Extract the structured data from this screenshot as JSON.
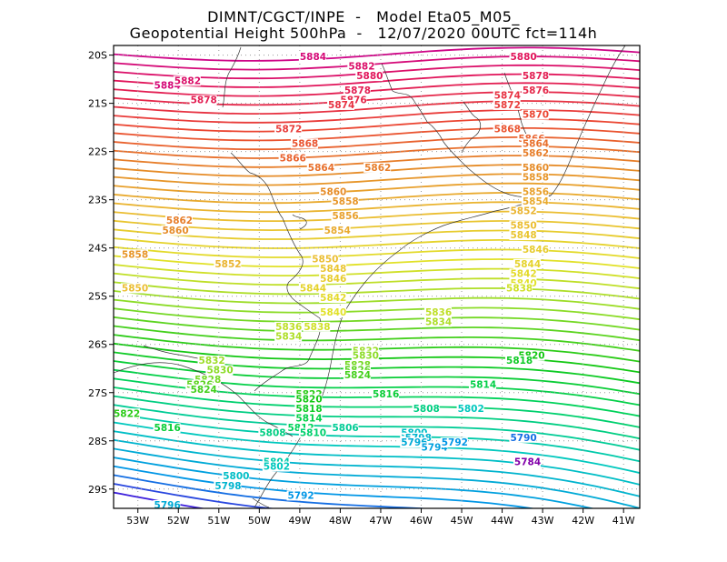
{
  "header": {
    "title_line1": "DIMNT/CGCT/INPE  -   Model Eta05_M05_",
    "title_line2": "Geopotential Height 500hPa  -   12/07/2020 00UTC fct=114h"
  },
  "chart_data": {
    "type": "contour",
    "variable": "Geopotential Height 500hPa",
    "lon_range": [
      -53.6,
      -40.6
    ],
    "lat_range": [
      -29.4,
      -19.8
    ],
    "contour_interval": 2,
    "lon_ticks": [
      {
        "value": -53,
        "label": "53W"
      },
      {
        "value": -52,
        "label": "52W"
      },
      {
        "value": -51,
        "label": "51W"
      },
      {
        "value": -50,
        "label": "50W"
      },
      {
        "value": -49,
        "label": "49W"
      },
      {
        "value": -48,
        "label": "48W"
      },
      {
        "value": -47,
        "label": "47W"
      },
      {
        "value": -46,
        "label": "46W"
      },
      {
        "value": -45,
        "label": "45W"
      },
      {
        "value": -44,
        "label": "44W"
      },
      {
        "value": -43,
        "label": "43W"
      },
      {
        "value": -42,
        "label": "42W"
      },
      {
        "value": -41,
        "label": "41W"
      }
    ],
    "lat_ticks": [
      {
        "value": -20,
        "label": "20S"
      },
      {
        "value": -21,
        "label": "21S"
      },
      {
        "value": -22,
        "label": "22S"
      },
      {
        "value": -23,
        "label": "23S"
      },
      {
        "value": -24,
        "label": "24S"
      },
      {
        "value": -25,
        "label": "25S"
      },
      {
        "value": -26,
        "label": "26S"
      },
      {
        "value": -27,
        "label": "27S"
      },
      {
        "value": -28,
        "label": "28S"
      },
      {
        "value": -29,
        "label": "29S"
      }
    ],
    "labels": [
      {
        "value": "5884",
        "lon": -52.6,
        "lat": -20.7
      },
      {
        "value": "5884",
        "lon": -49.0,
        "lat": -20.1
      },
      {
        "value": "5882",
        "lon": -52.1,
        "lat": -20.6
      },
      {
        "value": "5882",
        "lon": -47.8,
        "lat": -20.3
      },
      {
        "value": "5880",
        "lon": -47.6,
        "lat": -20.5
      },
      {
        "value": "5880",
        "lon": -43.8,
        "lat": -20.1
      },
      {
        "value": "5878",
        "lon": -51.7,
        "lat": -21.0
      },
      {
        "value": "5878",
        "lon": -47.9,
        "lat": -20.8
      },
      {
        "value": "5878",
        "lon": -43.5,
        "lat": -20.5
      },
      {
        "value": "5876",
        "lon": -48.0,
        "lat": -21.0
      },
      {
        "value": "5876",
        "lon": -43.5,
        "lat": -20.8
      },
      {
        "value": "5874",
        "lon": -48.3,
        "lat": -21.1
      },
      {
        "value": "5874",
        "lon": -44.2,
        "lat": -20.9
      },
      {
        "value": "5872",
        "lon": -49.6,
        "lat": -21.6
      },
      {
        "value": "5872",
        "lon": -44.2,
        "lat": -21.1
      },
      {
        "value": "5870",
        "lon": -43.5,
        "lat": -21.3
      },
      {
        "value": "5868",
        "lon": -49.2,
        "lat": -21.9
      },
      {
        "value": "5868",
        "lon": -44.2,
        "lat": -21.6
      },
      {
        "value": "5866",
        "lon": -49.5,
        "lat": -22.2
      },
      {
        "value": "5866",
        "lon": -43.6,
        "lat": -21.8
      },
      {
        "value": "5864",
        "lon": -48.8,
        "lat": -22.4
      },
      {
        "value": "5864",
        "lon": -43.5,
        "lat": -21.9
      },
      {
        "value": "5862",
        "lon": -47.4,
        "lat": -22.4
      },
      {
        "value": "5862",
        "lon": -43.5,
        "lat": -22.1
      },
      {
        "value": "5862",
        "lon": -52.3,
        "lat": -23.5
      },
      {
        "value": "5860",
        "lon": -48.5,
        "lat": -22.9
      },
      {
        "value": "5860",
        "lon": -43.5,
        "lat": -22.4
      },
      {
        "value": "5860",
        "lon": -52.4,
        "lat": -23.7
      },
      {
        "value": "5858",
        "lon": -48.2,
        "lat": -23.1
      },
      {
        "value": "5858",
        "lon": -43.5,
        "lat": -22.6
      },
      {
        "value": "5858",
        "lon": -53.4,
        "lat": -24.2
      },
      {
        "value": "5856",
        "lon": -48.2,
        "lat": -23.4
      },
      {
        "value": "5856",
        "lon": -43.5,
        "lat": -22.9
      },
      {
        "value": "5854",
        "lon": -48.4,
        "lat": -23.7
      },
      {
        "value": "5854",
        "lon": -43.5,
        "lat": -23.1
      },
      {
        "value": "5852",
        "lon": -51.1,
        "lat": -24.4
      },
      {
        "value": "5852",
        "lon": -43.8,
        "lat": -23.3
      },
      {
        "value": "5850",
        "lon": -48.7,
        "lat": -24.3
      },
      {
        "value": "5850",
        "lon": -43.8,
        "lat": -23.6
      },
      {
        "value": "5850",
        "lon": -53.4,
        "lat": -24.9
      },
      {
        "value": "5848",
        "lon": -48.5,
        "lat": -24.5
      },
      {
        "value": "5848",
        "lon": -43.8,
        "lat": -23.8
      },
      {
        "value": "5846",
        "lon": -48.5,
        "lat": -24.7
      },
      {
        "value": "5846",
        "lon": -43.5,
        "lat": -24.1
      },
      {
        "value": "5844",
        "lon": -49.0,
        "lat": -24.9
      },
      {
        "value": "5844",
        "lon": -43.7,
        "lat": -24.4
      },
      {
        "value": "5842",
        "lon": -48.5,
        "lat": -25.1
      },
      {
        "value": "5842",
        "lon": -43.8,
        "lat": -24.6
      },
      {
        "value": "5840",
        "lon": -48.5,
        "lat": -25.4
      },
      {
        "value": "5840",
        "lon": -43.8,
        "lat": -24.8
      },
      {
        "value": "5838",
        "lon": -48.9,
        "lat": -25.7
      },
      {
        "value": "5838",
        "lon": -43.9,
        "lat": -24.9
      },
      {
        "value": "5836",
        "lon": -49.6,
        "lat": -25.7
      },
      {
        "value": "5836",
        "lon": -45.9,
        "lat": -25.4
      },
      {
        "value": "5834",
        "lon": -49.6,
        "lat": -25.9
      },
      {
        "value": "5834",
        "lon": -45.9,
        "lat": -25.6
      },
      {
        "value": "5832",
        "lon": -51.5,
        "lat": -26.4
      },
      {
        "value": "5832",
        "lon": -47.7,
        "lat": -26.2
      },
      {
        "value": "5830",
        "lon": -51.3,
        "lat": -26.6
      },
      {
        "value": "5830",
        "lon": -47.7,
        "lat": -26.3
      },
      {
        "value": "5828",
        "lon": -51.6,
        "lat": -26.8
      },
      {
        "value": "5828",
        "lon": -47.9,
        "lat": -26.5
      },
      {
        "value": "5826",
        "lon": -51.8,
        "lat": -26.9
      },
      {
        "value": "5826",
        "lon": -47.9,
        "lat": -26.6
      },
      {
        "value": "5824",
        "lon": -51.7,
        "lat": -27.0
      },
      {
        "value": "5824",
        "lon": -47.9,
        "lat": -26.7
      },
      {
        "value": "5822",
        "lon": -49.1,
        "lat": -27.1
      },
      {
        "value": "5822",
        "lon": -53.6,
        "lat": -27.5
      },
      {
        "value": "5820",
        "lon": -49.1,
        "lat": -27.2
      },
      {
        "value": "5820",
        "lon": -43.6,
        "lat": -26.3
      },
      {
        "value": "5818",
        "lon": -49.1,
        "lat": -27.4
      },
      {
        "value": "5818",
        "lon": -43.9,
        "lat": -26.4
      },
      {
        "value": "5816",
        "lon": -47.2,
        "lat": -27.1
      },
      {
        "value": "5816",
        "lon": -52.6,
        "lat": -27.8
      },
      {
        "value": "5814",
        "lon": -49.1,
        "lat": -27.6
      },
      {
        "value": "5814",
        "lon": -44.8,
        "lat": -26.9
      },
      {
        "value": "5812",
        "lon": -49.3,
        "lat": -27.8
      },
      {
        "value": "5810",
        "lon": -49.0,
        "lat": -27.9
      },
      {
        "value": "5808",
        "lon": -50.0,
        "lat": -27.9
      },
      {
        "value": "5808",
        "lon": -46.2,
        "lat": -27.4
      },
      {
        "value": "5806",
        "lon": -48.2,
        "lat": -27.8
      },
      {
        "value": "5804",
        "lon": -49.9,
        "lat": -28.5
      },
      {
        "value": "5802",
        "lon": -49.9,
        "lat": -28.6
      },
      {
        "value": "5802",
        "lon": -45.1,
        "lat": -27.4
      },
      {
        "value": "5800",
        "lon": -50.9,
        "lat": -28.8
      },
      {
        "value": "5800",
        "lon": -46.5,
        "lat": -27.9
      },
      {
        "value": "5798",
        "lon": -51.1,
        "lat": -29.0
      },
      {
        "value": "5798",
        "lon": -46.4,
        "lat": -28.0
      },
      {
        "value": "5796",
        "lon": -46.5,
        "lat": -28.1
      },
      {
        "value": "5796",
        "lon": -52.6,
        "lat": -29.4
      },
      {
        "value": "5794",
        "lon": -46.0,
        "lat": -28.2
      },
      {
        "value": "5792",
        "lon": -45.5,
        "lat": -28.1
      },
      {
        "value": "5792",
        "lon": -49.3,
        "lat": -29.2
      },
      {
        "value": "5790",
        "lon": -43.8,
        "lat": -28.0
      },
      {
        "value": "5784",
        "lon": -43.7,
        "lat": -28.5
      }
    ]
  }
}
